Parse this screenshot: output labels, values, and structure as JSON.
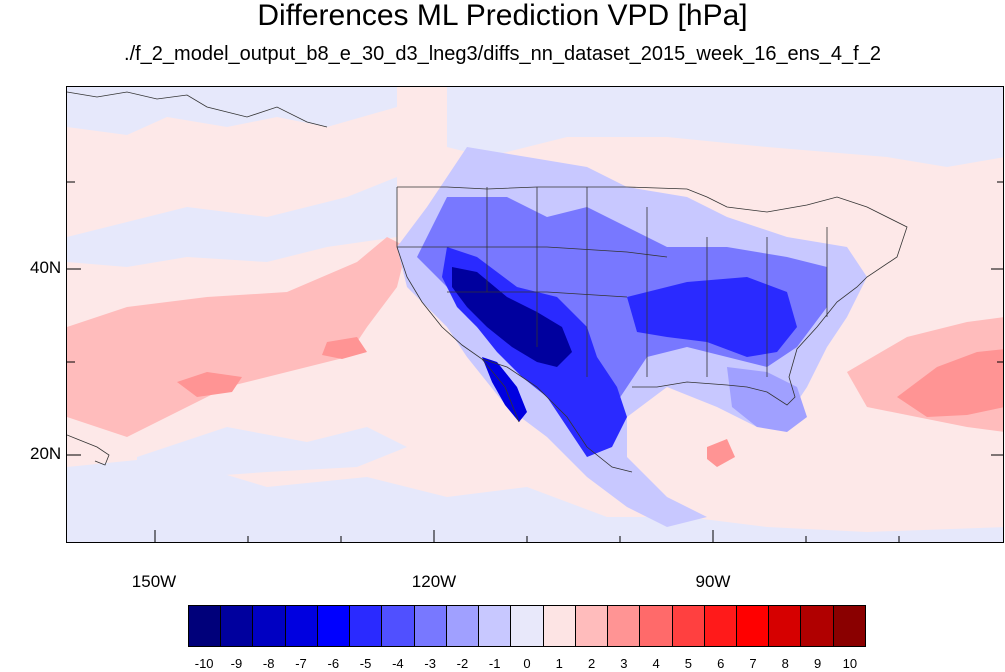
{
  "title": "Differences ML Prediction VPD [hPa]",
  "subtitle": "./f_2_model_output_b8_e_30_d3_lneg3/diffs_nn_dataset_2015_week_16_ens_4_f_2",
  "lat_labels": [
    "40N",
    "20N"
  ],
  "lon_labels": [
    "150W",
    "120W",
    "90W"
  ],
  "colorbar": {
    "labels": [
      "-10",
      "-9",
      "-8",
      "-7",
      "-6",
      "-5",
      "-4",
      "-3",
      "-2",
      "-1",
      "0",
      "1",
      "2",
      "3",
      "4",
      "5",
      "6",
      "7",
      "8",
      "9",
      "10"
    ],
    "colors": [
      "#00007a",
      "#00009e",
      "#0000c2",
      "#0000e0",
      "#0000ff",
      "#2a2aff",
      "#5050ff",
      "#7878ff",
      "#a0a0ff",
      "#c8c8ff",
      "#e8e8fa",
      "#fde4e4",
      "#ffbcbc",
      "#ff9494",
      "#ff6a6a",
      "#ff4040",
      "#ff1a1a",
      "#ff0000",
      "#d60000",
      "#b00000",
      "#8a0000"
    ]
  }
}
